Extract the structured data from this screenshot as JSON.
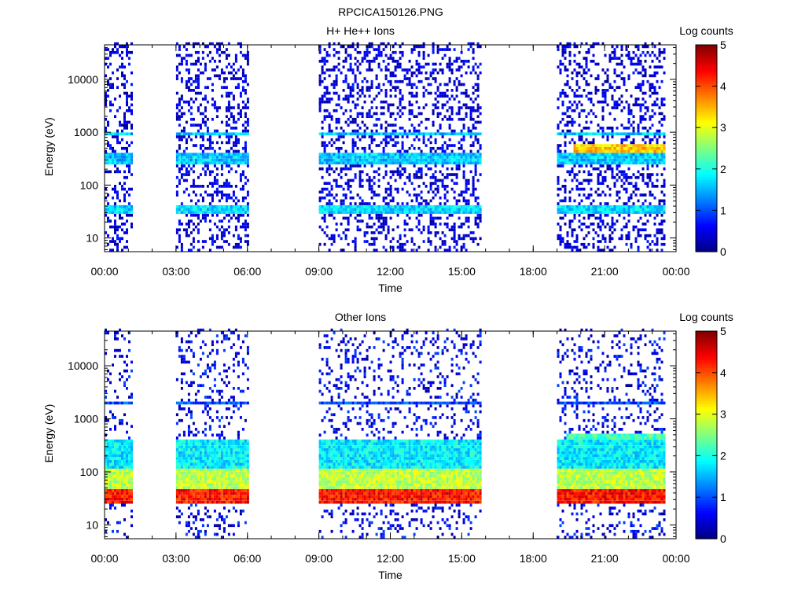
{
  "figure_title": "RPCICA150126.PNG",
  "colors": {
    "colormap": [
      "#000080",
      "#0000ff",
      "#0080ff",
      "#00ffff",
      "#80ff80",
      "#ffff00",
      "#ff8000",
      "#ff0000",
      "#800000"
    ],
    "axis": "#000000",
    "background": "#ffffff"
  },
  "chart_data": [
    {
      "type": "heatmap",
      "title": "H+ He++ Ions",
      "xlabel": "Time",
      "ylabel": "Energy (eV)",
      "x_unit": "hours",
      "x_range": [
        0,
        24
      ],
      "x_ticks": [
        0,
        3,
        6,
        9,
        12,
        15,
        18,
        21,
        24
      ],
      "x_tick_labels": [
        "00:00",
        "03:00",
        "06:00",
        "09:00",
        "12:00",
        "15:00",
        "18:00",
        "21:00",
        "00:00"
      ],
      "y_scale": "log",
      "y_range": [
        5.5,
        45000
      ],
      "y_ticks": [
        10,
        100,
        1000,
        10000
      ],
      "y_tick_labels": [
        "10",
        "100",
        "1000",
        "10000"
      ],
      "colorbar": {
        "label": "Log counts",
        "range": [
          0,
          5
        ],
        "ticks": [
          0,
          1,
          2,
          3,
          4,
          5
        ],
        "tick_labels": [
          "0",
          "1",
          "2",
          "3",
          "4",
          "5"
        ]
      },
      "data_intervals": [
        {
          "start": 0.0,
          "end": 1.2
        },
        {
          "start": 3.0,
          "end": 6.0
        },
        {
          "start": 9.0,
          "end": 15.8
        },
        {
          "start": 19.0,
          "end": 23.5
        }
      ],
      "bands": [
        {
          "energy_low": 28,
          "energy_high": 42,
          "level": 1.7,
          "start": 0.0,
          "end": 23.5
        },
        {
          "energy_low": 250,
          "energy_high": 420,
          "level": 1.6,
          "start": 0.0,
          "end": 23.5
        },
        {
          "energy_low": 850,
          "energy_high": 1000,
          "level": 1.6,
          "start": 0.0,
          "end": 23.5
        },
        {
          "energy_low": 420,
          "energy_high": 560,
          "level": 3.4,
          "start": 19.6,
          "end": 23.5
        }
      ],
      "noise_level": 0.7,
      "noise_density": 0.3
    },
    {
      "type": "heatmap",
      "title": "Other Ions",
      "xlabel": "Time",
      "ylabel": "Energy (eV)",
      "x_unit": "hours",
      "x_range": [
        0,
        24
      ],
      "x_ticks": [
        0,
        3,
        6,
        9,
        12,
        15,
        18,
        21,
        24
      ],
      "x_tick_labels": [
        "00:00",
        "03:00",
        "06:00",
        "09:00",
        "12:00",
        "15:00",
        "18:00",
        "21:00",
        "00:00"
      ],
      "y_scale": "log",
      "y_range": [
        5.5,
        45000
      ],
      "y_ticks": [
        10,
        100,
        1000,
        10000
      ],
      "y_tick_labels": [
        "10",
        "100",
        "1000",
        "10000"
      ],
      "colorbar": {
        "label": "Log counts",
        "range": [
          0,
          5
        ],
        "ticks": [
          0,
          1,
          2,
          3,
          4,
          5
        ],
        "tick_labels": [
          "0",
          "1",
          "2",
          "3",
          "4",
          "5"
        ]
      },
      "data_intervals": [
        {
          "start": 0.0,
          "end": 1.2
        },
        {
          "start": 3.0,
          "end": 6.0
        },
        {
          "start": 9.0,
          "end": 15.8
        },
        {
          "start": 19.0,
          "end": 23.5
        }
      ],
      "bands": [
        {
          "energy_low": 25,
          "energy_high": 45,
          "level": 4.3,
          "start": 0.0,
          "end": 23.5
        },
        {
          "energy_low": 45,
          "energy_high": 120,
          "level": 2.8,
          "start": 0.0,
          "end": 23.5
        },
        {
          "energy_low": 120,
          "energy_high": 400,
          "level": 1.8,
          "start": 0.0,
          "end": 23.5
        },
        {
          "energy_low": 1800,
          "energy_high": 2100,
          "level": 1.0,
          "start": 0.0,
          "end": 23.5
        },
        {
          "energy_low": 400,
          "energy_high": 550,
          "level": 2.2,
          "start": 19.3,
          "end": 23.5
        }
      ],
      "noise_level": 0.9,
      "noise_density": 0.18
    }
  ]
}
